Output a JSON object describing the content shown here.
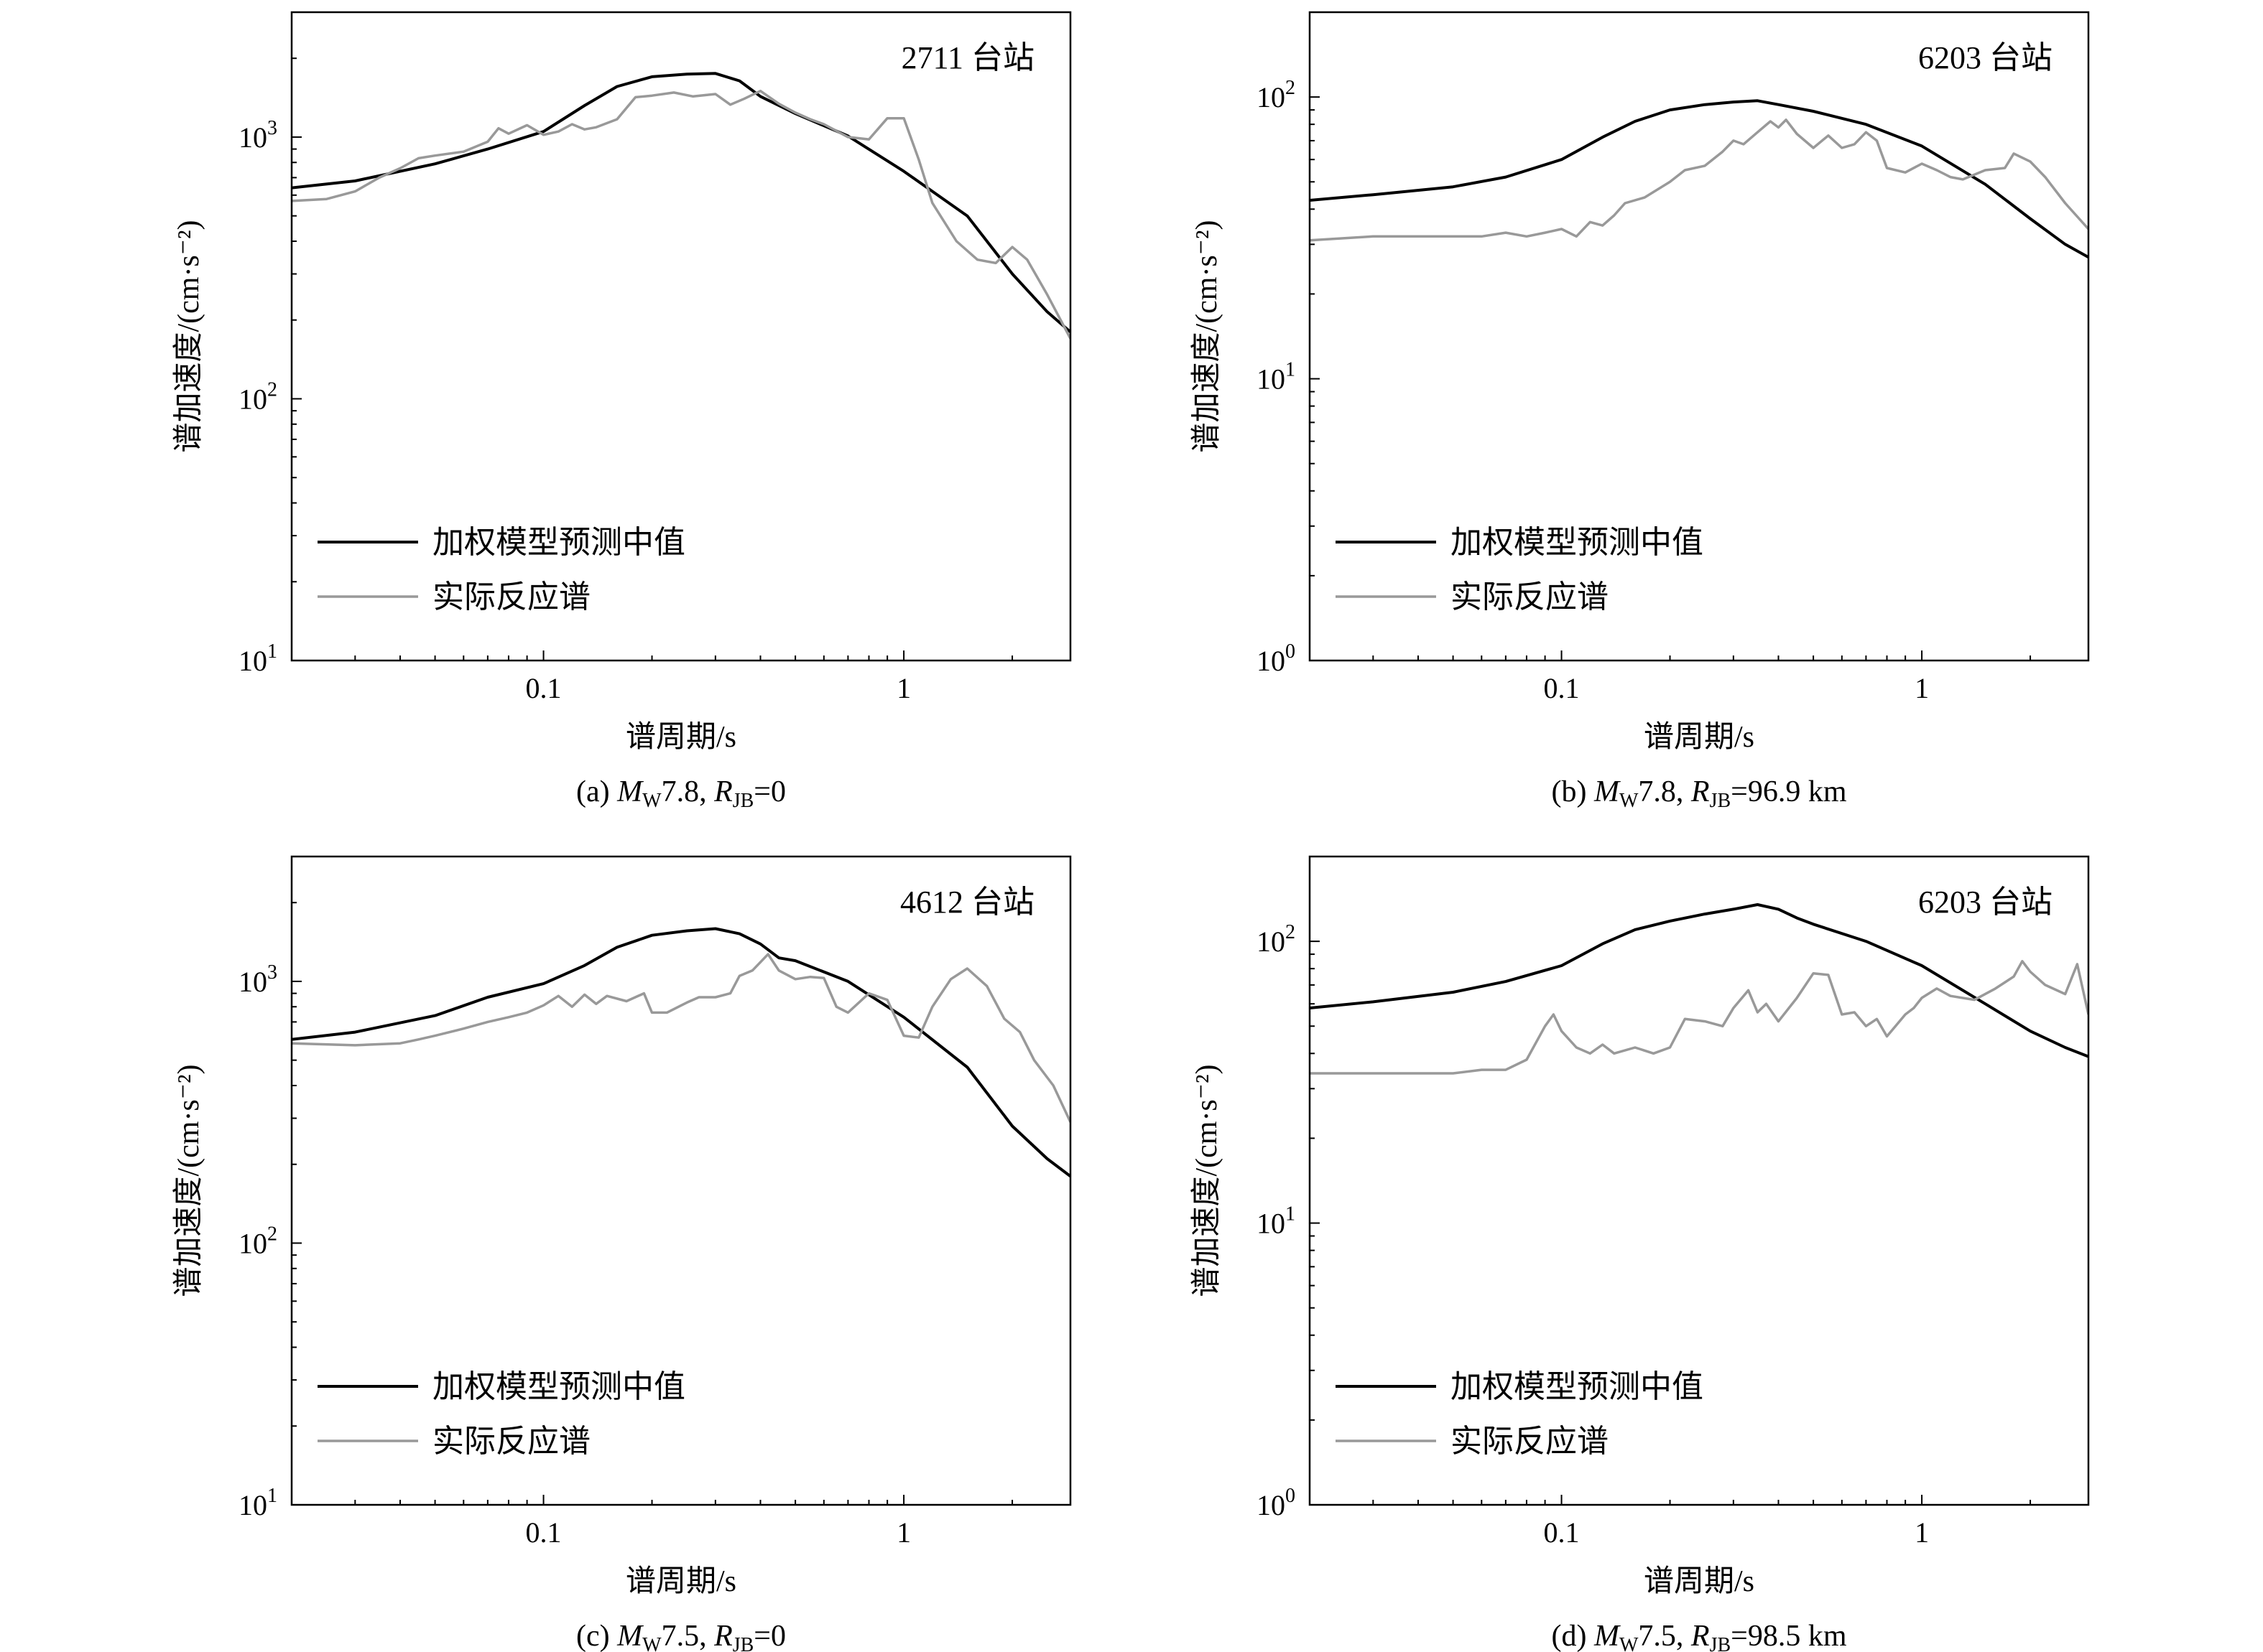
{
  "chart_data": [
    {
      "type": "line",
      "station": "2711 台站",
      "caption": "(a) M W7.8, R JB=0",
      "caption_parts": {
        "prefix": "(a) ",
        "M": "M",
        "M_sub": "W",
        "mag": "7.8, ",
        "R": "R",
        "R_sub": "JB",
        "rest": "=0"
      },
      "xlabel": "谱周期/s",
      "ylabel": "谱加速度/(cm·s⁻²)",
      "x_scale": "log",
      "y_scale": "log",
      "xlim": [
        0.02,
        2.9
      ],
      "ylim": [
        10,
        3000
      ],
      "xticks": [
        {
          "value": 0.1,
          "label": "0.1"
        },
        {
          "value": 1,
          "label": "1"
        }
      ],
      "yticks": [
        {
          "value": 10,
          "label": "10",
          "exp": "1"
        },
        {
          "value": 100,
          "label": "10",
          "exp": "2"
        },
        {
          "value": 1000,
          "label": "10",
          "exp": "3"
        }
      ],
      "legend_position": "lower-left",
      "series": [
        {
          "name": "加权模型预测中值",
          "color": "#000000",
          "x": [
            0.02,
            0.03,
            0.05,
            0.07,
            0.1,
            0.13,
            0.16,
            0.2,
            0.25,
            0.3,
            0.35,
            0.4,
            0.5,
            0.7,
            1.0,
            1.5,
            2.0,
            2.5,
            2.9
          ],
          "y": [
            640,
            680,
            790,
            900,
            1050,
            1320,
            1560,
            1700,
            1740,
            1750,
            1640,
            1430,
            1230,
            1010,
            740,
            500,
            300,
            215,
            180
          ]
        },
        {
          "name": "实际反应谱",
          "color": "#999999",
          "x": [
            0.02,
            0.025,
            0.03,
            0.035,
            0.04,
            0.045,
            0.05,
            0.06,
            0.07,
            0.075,
            0.08,
            0.09,
            0.1,
            0.11,
            0.12,
            0.13,
            0.14,
            0.16,
            0.18,
            0.2,
            0.23,
            0.26,
            0.3,
            0.33,
            0.36,
            0.4,
            0.45,
            0.5,
            0.55,
            0.6,
            0.7,
            0.8,
            0.9,
            1.0,
            1.1,
            1.2,
            1.4,
            1.6,
            1.8,
            2.0,
            2.2,
            2.5,
            2.9
          ],
          "y": [
            570,
            580,
            620,
            700,
            760,
            830,
            850,
            880,
            960,
            1080,
            1030,
            1110,
            1020,
            1050,
            1120,
            1070,
            1090,
            1170,
            1420,
            1440,
            1480,
            1430,
            1460,
            1330,
            1400,
            1500,
            1340,
            1240,
            1170,
            1120,
            1000,
            980,
            1180,
            1180,
            820,
            560,
            400,
            340,
            330,
            380,
            340,
            250,
            170
          ]
        }
      ]
    },
    {
      "type": "line",
      "station": "6203 台站",
      "caption": "(b) M W7.8, R JB=96.9 km",
      "caption_parts": {
        "prefix": "(b) ",
        "M": "M",
        "M_sub": "W",
        "mag": "7.8, ",
        "R": "R",
        "R_sub": "JB",
        "rest": "=96.9 km"
      },
      "xlabel": "谱周期/s",
      "ylabel": "谱加速度/(cm·s⁻²)",
      "x_scale": "log",
      "y_scale": "log",
      "xlim": [
        0.02,
        2.9
      ],
      "ylim": [
        1,
        200
      ],
      "xticks": [
        {
          "value": 0.1,
          "label": "0.1"
        },
        {
          "value": 1,
          "label": "1"
        }
      ],
      "yticks": [
        {
          "value": 1,
          "label": "10",
          "exp": "0"
        },
        {
          "value": 10,
          "label": "10",
          "exp": "1"
        },
        {
          "value": 100,
          "label": "10",
          "exp": "2"
        }
      ],
      "legend_position": "lower-left",
      "series": [
        {
          "name": "加权模型预测中值",
          "color": "#000000",
          "x": [
            0.02,
            0.03,
            0.05,
            0.07,
            0.1,
            0.13,
            0.16,
            0.2,
            0.25,
            0.3,
            0.35,
            0.4,
            0.5,
            0.7,
            1.0,
            1.5,
            2.0,
            2.5,
            2.9
          ],
          "y": [
            43,
            45,
            48,
            52,
            60,
            72,
            82,
            90,
            94,
            96,
            97,
            94,
            89,
            80,
            67,
            49,
            37,
            30,
            27
          ]
        },
        {
          "name": "实际反应谱",
          "color": "#999999",
          "x": [
            0.02,
            0.03,
            0.04,
            0.05,
            0.06,
            0.07,
            0.08,
            0.09,
            0.1,
            0.11,
            0.12,
            0.13,
            0.14,
            0.15,
            0.17,
            0.2,
            0.22,
            0.25,
            0.28,
            0.3,
            0.32,
            0.35,
            0.38,
            0.4,
            0.42,
            0.45,
            0.5,
            0.55,
            0.6,
            0.65,
            0.7,
            0.75,
            0.8,
            0.9,
            1.0,
            1.1,
            1.2,
            1.3,
            1.5,
            1.7,
            1.8,
            2.0,
            2.2,
            2.5,
            2.9
          ],
          "y": [
            31,
            32,
            32,
            32,
            32,
            33,
            32,
            33,
            34,
            32,
            36,
            35,
            38,
            42,
            44,
            50,
            55,
            57,
            64,
            70,
            68,
            75,
            82,
            78,
            83,
            74,
            66,
            73,
            66,
            68,
            75,
            70,
            56,
            54,
            58,
            55,
            52,
            51,
            55,
            56,
            63,
            59,
            52,
            42,
            34
          ]
        }
      ]
    },
    {
      "type": "line",
      "station": "4612 台站",
      "caption": "(c) M W7.5, R JB=0",
      "caption_parts": {
        "prefix": "(c) ",
        "M": "M",
        "M_sub": "W",
        "mag": "7.5, ",
        "R": "R",
        "R_sub": "JB",
        "rest": "=0"
      },
      "xlabel": "谱周期/s",
      "ylabel": "谱加速度/(cm·s⁻²)",
      "x_scale": "log",
      "y_scale": "log",
      "xlim": [
        0.02,
        2.9
      ],
      "ylim": [
        10,
        3000
      ],
      "xticks": [
        {
          "value": 0.1,
          "label": "0.1"
        },
        {
          "value": 1,
          "label": "1"
        }
      ],
      "yticks": [
        {
          "value": 10,
          "label": "10",
          "exp": "1"
        },
        {
          "value": 100,
          "label": "10",
          "exp": "2"
        },
        {
          "value": 1000,
          "label": "10",
          "exp": "3"
        }
      ],
      "legend_position": "lower-left",
      "series": [
        {
          "name": "加权模型预测中值",
          "color": "#000000",
          "x": [
            0.02,
            0.03,
            0.05,
            0.07,
            0.1,
            0.13,
            0.16,
            0.2,
            0.25,
            0.3,
            0.35,
            0.4,
            0.45,
            0.5,
            0.7,
            1.0,
            1.5,
            2.0,
            2.5,
            2.9
          ],
          "y": [
            600,
            640,
            740,
            870,
            980,
            1150,
            1350,
            1500,
            1560,
            1590,
            1520,
            1390,
            1230,
            1200,
            1000,
            730,
            470,
            280,
            210,
            180
          ]
        },
        {
          "name": "实际反应谱",
          "color": "#999999",
          "x": [
            0.02,
            0.03,
            0.04,
            0.045,
            0.05,
            0.06,
            0.07,
            0.08,
            0.09,
            0.1,
            0.11,
            0.12,
            0.13,
            0.14,
            0.15,
            0.17,
            0.19,
            0.2,
            0.22,
            0.25,
            0.27,
            0.3,
            0.33,
            0.35,
            0.38,
            0.42,
            0.45,
            0.5,
            0.55,
            0.6,
            0.65,
            0.7,
            0.8,
            0.9,
            1.0,
            1.1,
            1.2,
            1.35,
            1.5,
            1.7,
            1.9,
            2.1,
            2.3,
            2.6,
            2.9
          ],
          "y": [
            580,
            570,
            580,
            600,
            620,
            660,
            700,
            730,
            760,
            810,
            880,
            800,
            890,
            820,
            880,
            840,
            900,
            760,
            760,
            830,
            870,
            870,
            900,
            1050,
            1100,
            1270,
            1100,
            1020,
            1040,
            1030,
            800,
            760,
            900,
            850,
            620,
            610,
            800,
            1020,
            1120,
            960,
            720,
            640,
            500,
            400,
            290
          ]
        }
      ]
    },
    {
      "type": "line",
      "station": "6203 台站",
      "caption": "(d) M W7.5, R JB=98.5 km",
      "caption_parts": {
        "prefix": "(d) ",
        "M": "M",
        "M_sub": "W",
        "mag": "7.5, ",
        "R": "R",
        "R_sub": "JB",
        "rest": "=98.5 km"
      },
      "xlabel": "谱周期/s",
      "ylabel": "谱加速度/(cm·s⁻²)",
      "x_scale": "log",
      "y_scale": "log",
      "xlim": [
        0.02,
        2.9
      ],
      "ylim": [
        1,
        200
      ],
      "xticks": [
        {
          "value": 0.1,
          "label": "0.1"
        },
        {
          "value": 1,
          "label": "1"
        }
      ],
      "yticks": [
        {
          "value": 1,
          "label": "10",
          "exp": "0"
        },
        {
          "value": 10,
          "label": "10",
          "exp": "1"
        },
        {
          "value": 100,
          "label": "10",
          "exp": "2"
        }
      ],
      "legend_position": "lower-left",
      "series": [
        {
          "name": "加权模型预测中值",
          "color": "#000000",
          "x": [
            0.02,
            0.03,
            0.05,
            0.07,
            0.1,
            0.13,
            0.16,
            0.2,
            0.25,
            0.3,
            0.35,
            0.4,
            0.45,
            0.5,
            0.7,
            1.0,
            1.5,
            2.0,
            2.5,
            2.9
          ],
          "y": [
            58,
            61,
            66,
            72,
            82,
            98,
            110,
            118,
            125,
            130,
            135,
            130,
            121,
            115,
            100,
            82,
            60,
            48,
            42,
            39
          ]
        },
        {
          "name": "实际反应谱",
          "color": "#999999",
          "x": [
            0.02,
            0.03,
            0.04,
            0.05,
            0.06,
            0.07,
            0.08,
            0.09,
            0.095,
            0.1,
            0.11,
            0.12,
            0.13,
            0.14,
            0.16,
            0.18,
            0.2,
            0.22,
            0.25,
            0.28,
            0.3,
            0.33,
            0.35,
            0.37,
            0.4,
            0.45,
            0.5,
            0.55,
            0.6,
            0.65,
            0.7,
            0.75,
            0.8,
            0.9,
            0.95,
            1.0,
            1.1,
            1.2,
            1.4,
            1.6,
            1.8,
            1.9,
            2.0,
            2.2,
            2.5,
            2.7,
            2.9
          ],
          "y": [
            34,
            34,
            34,
            34,
            35,
            35,
            38,
            50,
            55,
            48,
            42,
            40,
            43,
            40,
            42,
            40,
            42,
            53,
            52,
            50,
            58,
            67,
            56,
            60,
            52,
            63,
            77,
            76,
            55,
            56,
            50,
            53,
            46,
            55,
            58,
            63,
            68,
            64,
            62,
            68,
            75,
            85,
            78,
            70,
            65,
            83,
            55
          ]
        }
      ]
    }
  ]
}
